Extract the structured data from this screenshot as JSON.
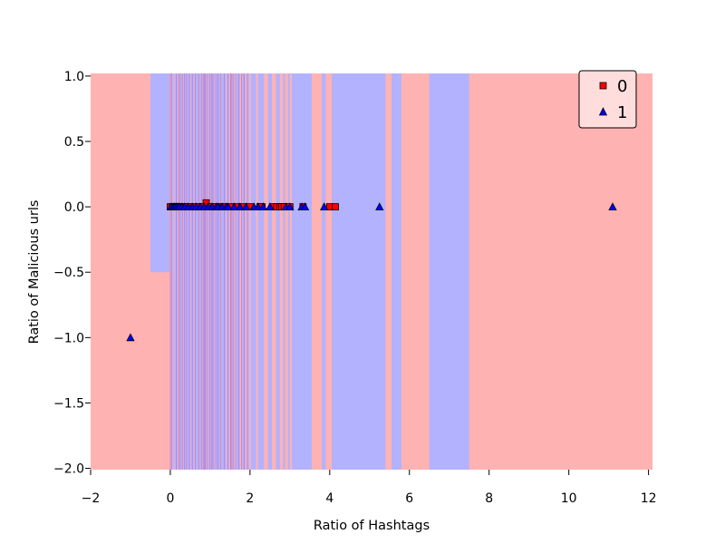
{
  "chart_data": {
    "type": "scatter",
    "title": "",
    "xlabel": "Ratio of Hashtags",
    "ylabel": "Ratio of Malicious urls",
    "xlim": [
      -2,
      12.1
    ],
    "ylim": [
      -2.01,
      1.02
    ],
    "xticks": [
      -2,
      0,
      2,
      4,
      6,
      8,
      10,
      12
    ],
    "yticks": [
      1.0,
      0.5,
      0.0,
      -0.5,
      -1.0,
      -1.5,
      -2.0
    ],
    "xtick_labels": [
      "−2",
      "0",
      "2",
      "4",
      "6",
      "8",
      "10",
      "12"
    ],
    "ytick_labels": [
      "1.0",
      "0.5",
      "0.0",
      "−0.5",
      "−1.0",
      "−1.5",
      "−2.0"
    ],
    "grid": false,
    "legend_position": "top-right",
    "colors": {
      "region_0": "#ffb2b2",
      "region_1": "#b2b2ff",
      "marker_0": "#ff0000",
      "marker_1": "#0000ff",
      "legend_bg": "#ffdddd"
    },
    "decision_regions": {
      "default_class": "0",
      "class_1_bands": [
        [
          -0.5,
          -0.02,
          -0.5,
          1.02
        ],
        [
          0.02,
          0.05,
          -2.01,
          1.02
        ],
        [
          0.06,
          0.09,
          -2.01,
          1.02
        ],
        [
          0.1,
          0.13,
          -2.01,
          1.02
        ],
        [
          0.14,
          0.2,
          -2.01,
          1.02
        ],
        [
          0.24,
          0.3,
          -2.01,
          1.02
        ],
        [
          0.33,
          0.4,
          -2.01,
          1.02
        ],
        [
          0.42,
          0.5,
          -2.01,
          1.02
        ],
        [
          0.52,
          0.6,
          -2.01,
          1.02
        ],
        [
          0.62,
          0.7,
          -2.01,
          1.02
        ],
        [
          0.72,
          0.78,
          -2.01,
          1.02
        ],
        [
          0.8,
          0.82,
          -2.01,
          1.02
        ],
        [
          0.86,
          0.92,
          -2.01,
          1.02
        ],
        [
          0.95,
          0.98,
          -2.01,
          1.02
        ],
        [
          1.0,
          1.03,
          -2.01,
          1.02
        ],
        [
          1.05,
          1.12,
          -2.01,
          1.02
        ],
        [
          1.15,
          1.25,
          -2.01,
          1.02
        ],
        [
          1.28,
          1.4,
          -2.01,
          1.02
        ],
        [
          1.42,
          1.48,
          -2.01,
          1.02
        ],
        [
          1.5,
          1.52,
          -2.01,
          1.02
        ],
        [
          1.56,
          1.62,
          -2.01,
          1.02
        ],
        [
          1.66,
          1.75,
          -2.01,
          1.02
        ],
        [
          1.8,
          1.88,
          -2.01,
          1.02
        ],
        [
          1.92,
          1.98,
          -2.01,
          1.02
        ],
        [
          2.02,
          2.15,
          -2.01,
          1.02
        ],
        [
          2.2,
          2.35,
          -2.01,
          1.02
        ],
        [
          2.45,
          2.55,
          -2.01,
          1.02
        ],
        [
          2.65,
          2.75,
          -2.01,
          1.02
        ],
        [
          2.83,
          2.88,
          -2.01,
          1.02
        ],
        [
          2.95,
          3.0,
          -2.01,
          1.02
        ],
        [
          3.05,
          3.55,
          -2.01,
          1.02
        ],
        [
          3.8,
          3.9,
          -2.01,
          1.02
        ],
        [
          4.05,
          5.4,
          -2.01,
          1.02
        ],
        [
          5.55,
          5.8,
          -2.01,
          1.02
        ],
        [
          6.5,
          7.5,
          -2.01,
          1.02
        ]
      ]
    },
    "boundary_lines_x": [
      0.0,
      0.03,
      0.15,
      0.22,
      0.25,
      0.31,
      0.36,
      0.41,
      0.48,
      0.55,
      0.63,
      0.71,
      0.79,
      0.83,
      0.85,
      0.88,
      0.93,
      0.99,
      1.04,
      1.07,
      1.14,
      1.2,
      1.26,
      1.36,
      1.45,
      1.51,
      1.53,
      1.57,
      1.64,
      1.72,
      1.79,
      1.85,
      1.93
    ],
    "series": [
      {
        "name": "0",
        "marker": "square",
        "points": [
          [
            0.0,
            0.0
          ],
          [
            0.05,
            0.0
          ],
          [
            0.08,
            0.0
          ],
          [
            0.12,
            0.0
          ],
          [
            0.15,
            0.0
          ],
          [
            0.2,
            0.0
          ],
          [
            0.25,
            0.0
          ],
          [
            0.33,
            0.0
          ],
          [
            0.4,
            0.0
          ],
          [
            0.5,
            0.0
          ],
          [
            0.6,
            0.0
          ],
          [
            0.7,
            0.0
          ],
          [
            0.8,
            0.0
          ],
          [
            0.9,
            0.03
          ],
          [
            1.0,
            0.0
          ],
          [
            1.1,
            0.0
          ],
          [
            1.25,
            0.0
          ],
          [
            1.33,
            0.0
          ],
          [
            1.5,
            0.0
          ],
          [
            1.67,
            0.0
          ],
          [
            1.8,
            0.0
          ],
          [
            2.0,
            0.0
          ],
          [
            2.25,
            0.0
          ],
          [
            2.3,
            0.0
          ],
          [
            2.57,
            0.0
          ],
          [
            2.67,
            0.0
          ],
          [
            2.75,
            0.0
          ],
          [
            2.8,
            0.0
          ],
          [
            2.86,
            0.0
          ],
          [
            3.0,
            0.0
          ],
          [
            3.33,
            0.0
          ],
          [
            4.0,
            0.0
          ],
          [
            4.14,
            0.0
          ]
        ]
      },
      {
        "name": "1",
        "marker": "triangle",
        "points": [
          [
            -1.0,
            -1.0
          ],
          [
            0.02,
            0.0
          ],
          [
            0.07,
            0.0
          ],
          [
            0.1,
            0.0
          ],
          [
            0.14,
            0.0
          ],
          [
            0.18,
            0.0
          ],
          [
            0.22,
            0.0
          ],
          [
            0.29,
            0.0
          ],
          [
            0.36,
            0.0
          ],
          [
            0.45,
            0.0
          ],
          [
            0.55,
            0.0
          ],
          [
            0.65,
            0.0
          ],
          [
            0.75,
            0.0
          ],
          [
            0.85,
            0.0
          ],
          [
            0.95,
            0.0
          ],
          [
            1.05,
            0.0
          ],
          [
            1.15,
            0.0
          ],
          [
            1.2,
            0.0
          ],
          [
            1.3,
            0.0
          ],
          [
            1.4,
            0.0
          ],
          [
            1.45,
            0.0
          ],
          [
            1.6,
            0.0
          ],
          [
            1.75,
            0.0
          ],
          [
            1.9,
            0.0
          ],
          [
            2.1,
            0.0
          ],
          [
            2.2,
            0.0
          ],
          [
            2.33,
            0.0
          ],
          [
            2.5,
            0.0
          ],
          [
            2.9,
            0.0
          ],
          [
            3.0,
            0.0
          ],
          [
            3.3,
            0.0
          ],
          [
            3.38,
            0.0
          ],
          [
            3.86,
            0.0
          ],
          [
            5.25,
            0.0
          ],
          [
            11.1,
            0.0
          ]
        ]
      }
    ]
  }
}
